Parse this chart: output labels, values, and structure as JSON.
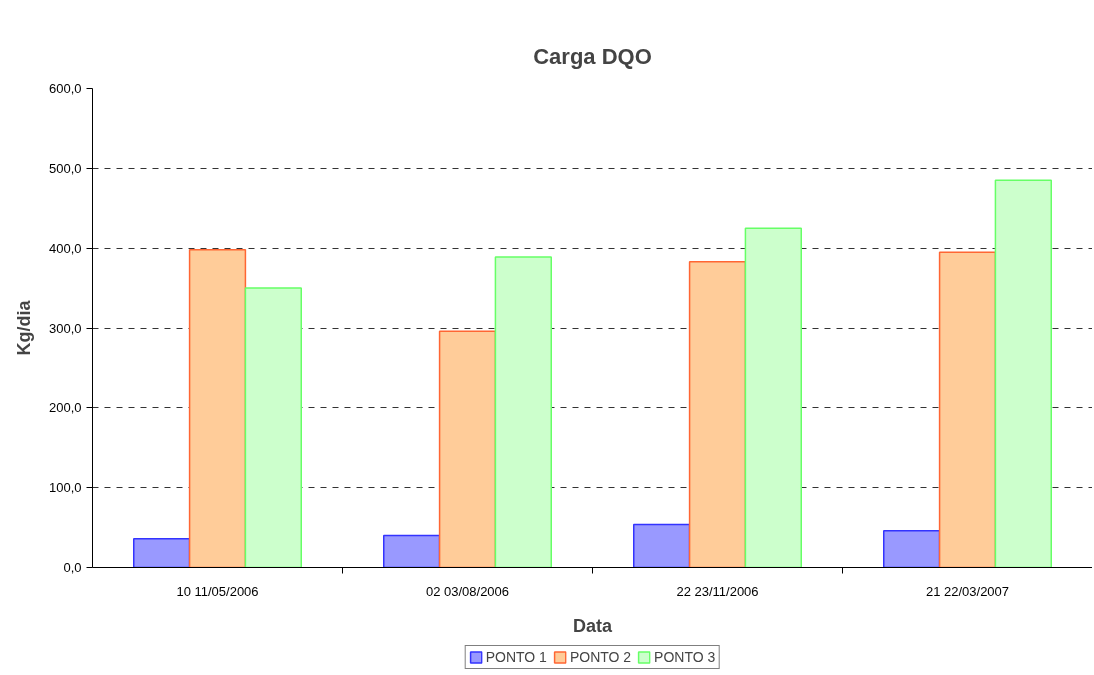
{
  "chart_data": {
    "type": "bar",
    "title": "Carga DQO",
    "xlabel": "Data",
    "ylabel": "Kg/dia",
    "categories": [
      "10 11/05/2006",
      "02 03/08/2006",
      "22 23/11/2006",
      "21 22/03/2007"
    ],
    "series": [
      {
        "name": "PONTO 1",
        "color": "#9999ff",
        "values": [
          36,
          40,
          54,
          46
        ]
      },
      {
        "name": "PONTO 2",
        "color": "#ffcc99",
        "values": [
          398,
          296,
          383,
          395
        ]
      },
      {
        "name": "PONTO 3",
        "color": "#ccffcc",
        "values": [
          350,
          389,
          425,
          485
        ]
      }
    ],
    "ylim": [
      0,
      600
    ],
    "yticks": [
      {
        "value": 0,
        "label": "0,0"
      },
      {
        "value": 100,
        "label": "100,0"
      },
      {
        "value": 200,
        "label": "200,0"
      },
      {
        "value": 300,
        "label": "300,0"
      },
      {
        "value": 400,
        "label": "400,0"
      },
      {
        "value": 500,
        "label": "500,0"
      },
      {
        "value": 600,
        "label": "600,0"
      }
    ],
    "grid": "y",
    "legend": "bottom"
  }
}
